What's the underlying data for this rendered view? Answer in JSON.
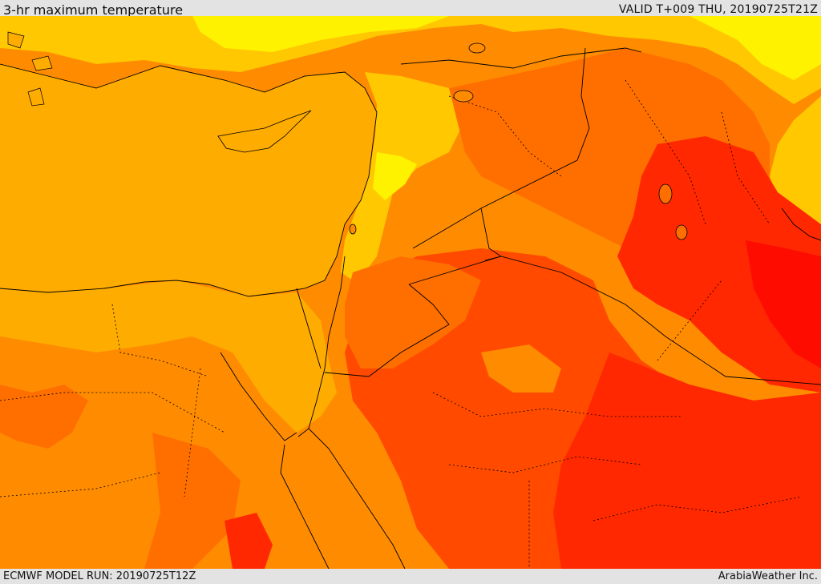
{
  "header": {
    "title": "3-hr maximum temperature",
    "valid": "VALID T+009 THU, 20190725T21Z"
  },
  "footer": {
    "model_run": "ECMWF MODEL RUN: 20190725T12Z",
    "credit": "ArabiaWeather Inc."
  },
  "colors": {
    "sea": "#ffac00",
    "yellow": "#ffe200",
    "light_yellow": "#fff200",
    "light_orange": "#ffc800",
    "orange": "#ff8c00",
    "dark_orange": "#ff6f00",
    "red_orange": "#ff4a00",
    "red": "#ff2800",
    "deep_red": "#ff0c00",
    "border": "#000000"
  }
}
